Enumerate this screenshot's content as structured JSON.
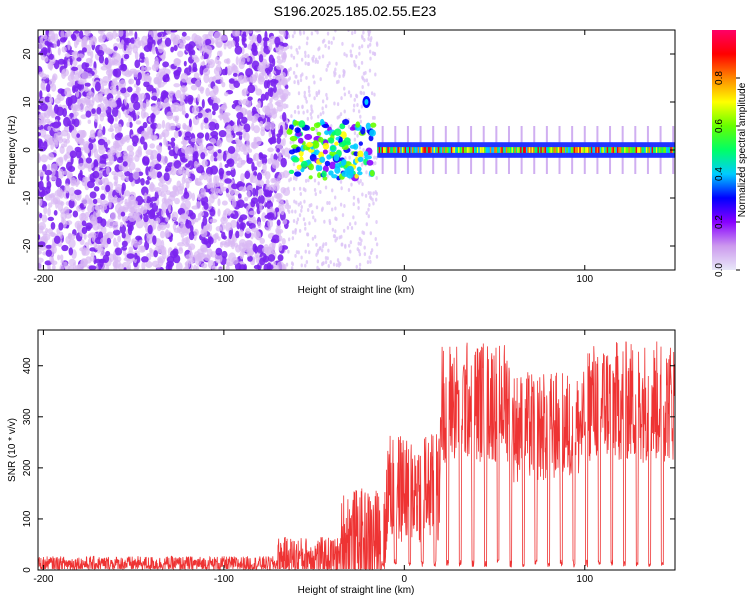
{
  "chart_data": [
    {
      "type": "heatmap",
      "title": "S196.2025.185.02.55.E23",
      "xlabel": "Height of straight line (km)",
      "ylabel": "Frequency (Hz)",
      "xlim": [
        -203,
        150
      ],
      "ylim": [
        -25,
        25
      ],
      "xticks": [
        "-200",
        "-100",
        "0",
        "100"
      ],
      "yticks": [
        "20",
        "10",
        "0",
        "-10",
        "-20"
      ],
      "colorbar": {
        "label": "Normalized spectral amplitude",
        "ticks": [
          "0.0",
          "0.2",
          "0.4",
          "0.6",
          "0.8"
        ],
        "range": [
          0,
          1
        ],
        "colormap": [
          "#e8e8f8",
          "#cc99ee",
          "#8800ff",
          "#0000ff",
          "#00ccff",
          "#00ff66",
          "#66ff00",
          "#ffff00",
          "#ff8800",
          "#ff0000",
          "#ff0066"
        ]
      },
      "features": {
        "noise_region_x": [
          -203,
          -65
        ],
        "transition_region_x": [
          -65,
          -15
        ],
        "signal_band_freq_hz": 0,
        "signal_band_x": [
          -15,
          150
        ],
        "harmonic_blob": {
          "x": -21,
          "freq": 10
        }
      }
    },
    {
      "type": "line",
      "xlabel": "Height of straight line (km)",
      "ylabel": "SNR (10 * v/v)",
      "xlim": [
        -203,
        150
      ],
      "ylim": [
        0,
        470
      ],
      "xticks": [
        "-200",
        "-100",
        "0",
        "100"
      ],
      "yticks": [
        "0",
        "100",
        "200",
        "300",
        "400"
      ],
      "color": "#ee3333",
      "segments": [
        {
          "x": [
            -203,
            -70
          ],
          "baseline": 12,
          "noise_amp": 15
        },
        {
          "x": [
            -70,
            -35
          ],
          "baseline": 25,
          "noise_amp": 40
        },
        {
          "x": [
            -35,
            -10
          ],
          "baseline": 60,
          "noise_amp": 100
        },
        {
          "x": [
            -10,
            20
          ],
          "baseline": 160,
          "noise_amp": 110
        },
        {
          "x": [
            20,
            60
          ],
          "baseline": 330,
          "noise_amp": 120
        },
        {
          "x": [
            60,
            100
          ],
          "baseline": 280,
          "noise_amp": 110
        },
        {
          "x": [
            100,
            150
          ],
          "baseline": 330,
          "noise_amp": 120
        }
      ],
      "dips_x": [
        -12,
        -5,
        3,
        10,
        17,
        24,
        31,
        38,
        45,
        52,
        59,
        66,
        73,
        80,
        87,
        94,
        101,
        108,
        115,
        122,
        129,
        136,
        143
      ]
    }
  ]
}
